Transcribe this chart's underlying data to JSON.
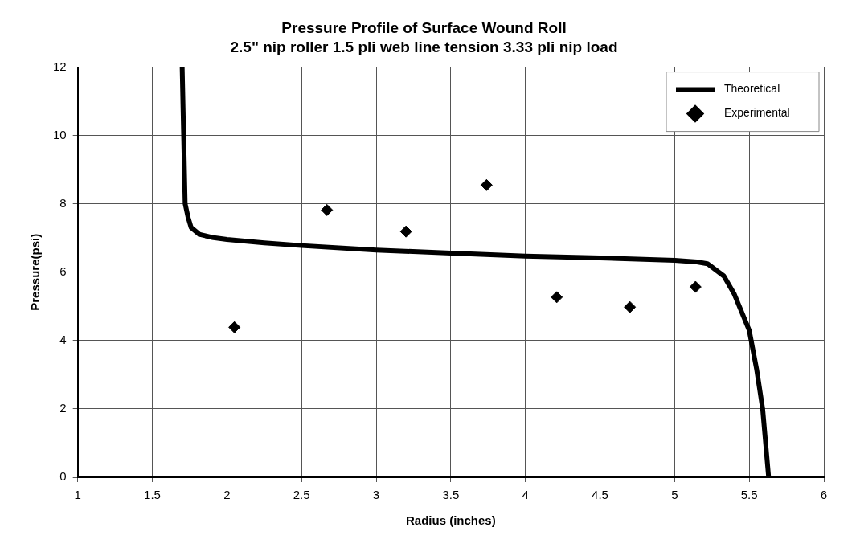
{
  "chart_data": {
    "type": "scatter",
    "title": "Pressure Profile of Surface Wound Roll",
    "subtitle": "2.5\" nip roller 1.5 pli web line tension 3.33 pli nip load",
    "xlabel": "Radius (inches)",
    "ylabel": "Pressure(psi)",
    "series": [
      {
        "name": "Theoretical",
        "type": "line",
        "marker": "none",
        "color": "#000000",
        "x": [
          1.7,
          1.71,
          1.72,
          1.74,
          1.76,
          1.815,
          1.9,
          2.0,
          2.25,
          2.5,
          3.0,
          3.5,
          4.0,
          4.5,
          5.0,
          5.15,
          5.22,
          5.33,
          5.4,
          5.5,
          5.55,
          5.59,
          5.63
        ],
        "values": [
          12,
          10,
          8,
          7.6,
          7.31,
          7.11,
          7.02,
          6.96,
          6.86,
          6.78,
          6.65,
          6.56,
          6.47,
          6.42,
          6.35,
          6.3,
          6.25,
          5.89,
          5.36,
          4.3,
          3.15,
          2.0,
          0
        ]
      },
      {
        "name": "Experimental",
        "type": "scatter",
        "marker": "diamond",
        "color": "#000000",
        "x": [
          2.05,
          2.67,
          3.2,
          3.74,
          4.21,
          4.7,
          5.14
        ],
        "values": [
          4.39,
          7.82,
          7.19,
          8.55,
          5.27,
          4.98,
          5.57
        ]
      }
    ],
    "line_style": "solid",
    "grid": true,
    "legend": "top right",
    "xlim": [
      1,
      6
    ],
    "xticks": [
      1,
      1.5,
      2,
      2.5,
      3,
      3.5,
      4,
      4.5,
      5,
      5.5,
      6
    ],
    "ylim": [
      0,
      12
    ],
    "yticks": [
      0,
      2,
      4,
      6,
      8,
      10,
      12
    ]
  }
}
